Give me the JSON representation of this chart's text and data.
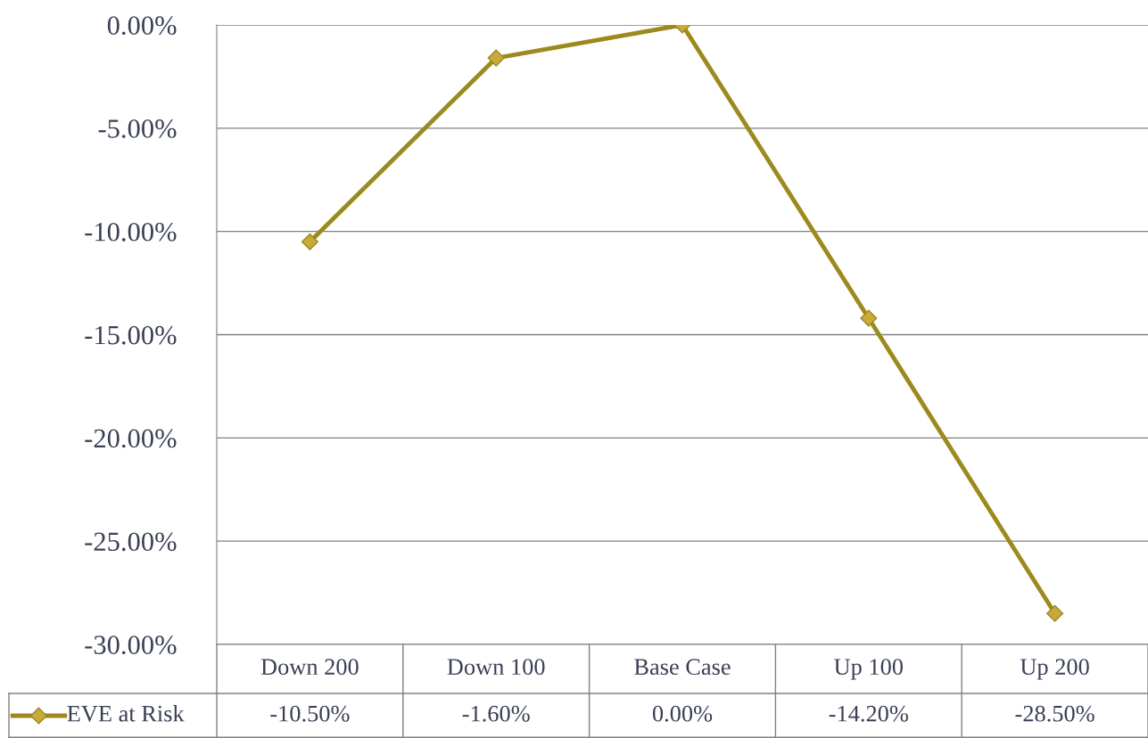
{
  "chart_data": {
    "type": "line",
    "categories": [
      "Down 200",
      "Down 100",
      "Base Case",
      "Up 100",
      "Up 200"
    ],
    "series": [
      {
        "name": "EVE at Risk",
        "color": "#9c8a1e",
        "values": [
          -10.5,
          -1.6,
          0.0,
          -14.2,
          -28.5
        ],
        "value_labels": [
          "-10.50%",
          "-1.60%",
          "0.00%",
          "-14.20%",
          "-28.50%"
        ]
      }
    ],
    "ylim": [
      -30,
      0
    ],
    "yticks": [
      {
        "value": -30,
        "label": "-30.00%"
      },
      {
        "value": -25,
        "label": "-25.00%"
      },
      {
        "value": -20,
        "label": "-20.00%"
      },
      {
        "value": -15,
        "label": "-15.00%"
      },
      {
        "value": -10,
        "label": "-10.00%"
      },
      {
        "value": -5,
        "label": "-5.00%"
      },
      {
        "value": 0,
        "label": "0.00%"
      }
    ],
    "grid": "y",
    "legend": "bottom",
    "marker": "diamond",
    "line_style": "solid"
  }
}
